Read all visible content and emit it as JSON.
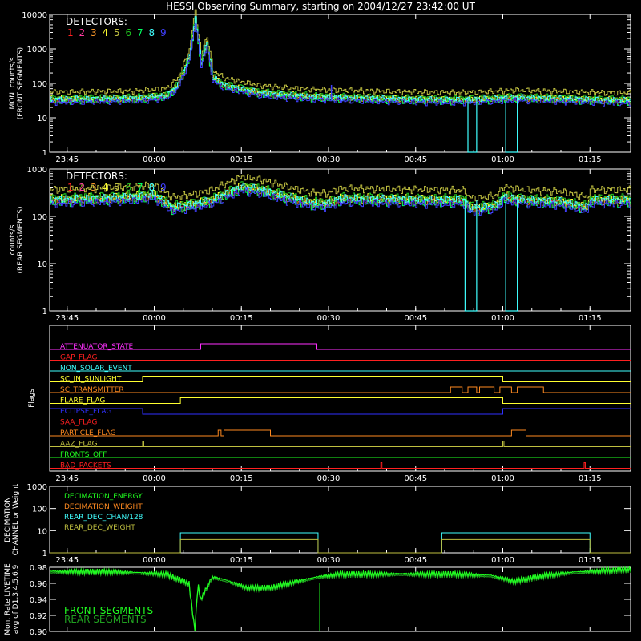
{
  "title": "HESSI Observing Summary, starting on 2004/12/27 23:42:00 UT",
  "x_ticks": [
    "23:45",
    "00:00",
    "00:15",
    "00:30",
    "00:45",
    "01:00",
    "01:15"
  ],
  "x_tick_minutes": [
    3,
    18,
    33,
    48,
    63,
    78,
    93
  ],
  "x_range_minutes": [
    0,
    100
  ],
  "colors": {
    "det1": "#ff2020",
    "det2": "#ff3aa0",
    "det3": "#ff9a2a",
    "det4": "#ffff30",
    "det5": "#bfbf40",
    "det6": "#20c020",
    "det7": "#00ff60",
    "det8": "#40ffff",
    "det9": "#4040ff"
  },
  "chart_data": [
    {
      "type": "line",
      "id": "front",
      "ylabel": [
        "MON. counts/s",
        "(FRONT SEGMENTS)"
      ],
      "yscale": "log",
      "ylim": [
        1,
        10000
      ],
      "y_ticks": [
        "1",
        "10",
        "100",
        "1000",
        "10000"
      ],
      "legend_title": "DETECTORS:",
      "legend_labels": [
        "1",
        "2",
        "3",
        "4",
        "5",
        "6",
        "7",
        "8",
        "9"
      ],
      "series_x": [
        0,
        5,
        10,
        15,
        20,
        22,
        24,
        25,
        26,
        27,
        28,
        30,
        33,
        36,
        40,
        45,
        50,
        55,
        60,
        65,
        70,
        75,
        80,
        85,
        90,
        95,
        100
      ],
      "baseline_y": [
        35,
        36,
        37,
        38,
        45,
        90,
        600,
        8000,
        400,
        1500,
        150,
        90,
        70,
        55,
        48,
        42,
        40,
        38,
        36,
        35,
        34,
        36,
        40,
        38,
        36,
        34,
        33
      ],
      "spike_minute": 48.5,
      "cyan_dropouts": [
        [
          72,
          73.5
        ],
        [
          78.5,
          80.5
        ]
      ]
    },
    {
      "type": "line",
      "id": "rear",
      "ylabel": [
        "counts/s",
        "(REAR SEGMENTS)"
      ],
      "yscale": "log",
      "ylim": [
        1,
        1000
      ],
      "y_ticks": [
        "1",
        "10",
        "100",
        "1000"
      ],
      "legend_title": "DETECTORS:",
      "legend_labels": [
        "1",
        "2",
        "3",
        "4",
        "5",
        "6",
        "7",
        "8",
        "9"
      ],
      "series_x": [
        0,
        5,
        10,
        15,
        18,
        21,
        24,
        26,
        28,
        30,
        33,
        36,
        40,
        45,
        47.5,
        50,
        55,
        60,
        65,
        71.5,
        72,
        74,
        77,
        78,
        80,
        82,
        88,
        92.5,
        93,
        100
      ],
      "baseline_y": [
        230,
        240,
        250,
        270,
        290,
        160,
        180,
        200,
        230,
        300,
        430,
        380,
        280,
        200,
        190,
        245,
        240,
        235,
        230,
        225,
        160,
        155,
        180,
        270,
        240,
        230,
        210,
        160,
        230,
        230
      ],
      "cyan_dropouts": [
        [
          71.5,
          73.5
        ],
        [
          78.5,
          80.5
        ]
      ]
    },
    {
      "type": "table",
      "id": "flags",
      "ylabel": "Flags",
      "flags": [
        {
          "name": "ATTENUATOR_STATE",
          "color": "#ff30ff",
          "segments": [
            [
              0,
              0
            ],
            [
              26,
              1
            ],
            [
              46,
              0
            ],
            [
              100,
              0
            ]
          ]
        },
        {
          "name": "GAP_FLAG",
          "color": "#ff2020",
          "segments": [
            [
              0,
              0
            ],
            [
              100,
              0
            ]
          ]
        },
        {
          "name": "NON_SOLAR_EVENT",
          "color": "#40ffff",
          "segments": [
            [
              0,
              0
            ],
            [
              100,
              0
            ]
          ]
        },
        {
          "name": "SC_IN_SUNLIGHT",
          "color": "#ffff30",
          "segments": [
            [
              0,
              0
            ],
            [
              16,
              1
            ],
            [
              78,
              0
            ],
            [
              100,
              0
            ]
          ]
        },
        {
          "name": "SC_TRANSMITTER",
          "color": "#ff8a20",
          "segments": [
            [
              0,
              0
            ],
            [
              69,
              1
            ],
            [
              71,
              0
            ],
            [
              72,
              1
            ],
            [
              73.5,
              0
            ],
            [
              74,
              1
            ],
            [
              76.5,
              0
            ],
            [
              77.5,
              1
            ],
            [
              79.5,
              0
            ],
            [
              80.5,
              1
            ],
            [
              85,
              0
            ],
            [
              100,
              0
            ]
          ]
        },
        {
          "name": "FLARE_FLAG",
          "color": "#ffff30",
          "segments": [
            [
              0,
              0
            ],
            [
              22.5,
              1
            ],
            [
              78,
              0
            ],
            [
              100,
              0
            ]
          ]
        },
        {
          "name": "ECLIPSE_FLAG",
          "color": "#3030ff",
          "segments": [
            [
              0,
              1
            ],
            [
              16,
              0
            ],
            [
              78,
              1
            ],
            [
              100,
              1
            ]
          ]
        },
        {
          "name": "SAA_FLAG",
          "color": "#ff2020",
          "segments": [
            [
              0,
              0
            ],
            [
              100,
              0
            ]
          ]
        },
        {
          "name": "PARTICLE_FLAG",
          "color": "#ff8a20",
          "segments": [
            [
              0,
              0
            ],
            [
              29,
              1
            ],
            [
              29.5,
              0
            ],
            [
              30,
              1
            ],
            [
              38,
              0
            ],
            [
              79.5,
              1
            ],
            [
              82,
              0
            ],
            [
              100,
              0
            ]
          ]
        },
        {
          "name": "AAZ_FLAG",
          "color": "#bfbf40",
          "segments": [
            [
              0,
              0
            ],
            [
              16,
              1
            ],
            [
              16.2,
              0
            ],
            [
              78,
              1
            ],
            [
              78.2,
              0
            ],
            [
              100,
              0
            ]
          ]
        },
        {
          "name": "FRONTS_OFF",
          "color": "#20ff20",
          "segments": [
            [
              0,
              0
            ],
            [
              100,
              0
            ]
          ]
        },
        {
          "name": "BAD_PACKETS",
          "color": "#ff2020",
          "segments": [
            [
              0,
              0
            ],
            [
              57,
              1
            ],
            [
              57.2,
              0
            ],
            [
              92,
              1
            ],
            [
              92.2,
              0
            ],
            [
              100,
              0
            ]
          ]
        }
      ]
    },
    {
      "type": "line",
      "id": "decimation",
      "ylabel": [
        "DECIMATION",
        "CHANNEL or Weight"
      ],
      "yscale": "log",
      "ylim": [
        1,
        1000
      ],
      "y_ticks": [
        "1",
        "10",
        "100",
        "1000"
      ],
      "legend": [
        {
          "name": "DECIMATION_ENERGY",
          "color": "#20ff20"
        },
        {
          "name": "DECIMATION_WEIGHT",
          "color": "#ff8a20"
        },
        {
          "name": "REAR_DEC_CHAN/128",
          "color": "#40ffff"
        },
        {
          "name": "REAR_DEC_WEIGHT",
          "color": "#bfbf40"
        }
      ],
      "rear_dec_chan": [
        [
          0,
          1
        ],
        [
          22.5,
          8
        ],
        [
          46.2,
          1
        ],
        [
          67.5,
          8
        ],
        [
          93,
          1
        ],
        [
          100,
          1
        ]
      ],
      "rear_dec_weight": [
        [
          0,
          1
        ],
        [
          22.5,
          4
        ],
        [
          46.2,
          1
        ],
        [
          67.5,
          4
        ],
        [
          93,
          1
        ],
        [
          100,
          1
        ]
      ]
    },
    {
      "type": "line",
      "id": "livetime",
      "ylabel": [
        "Mon. Rate LIVETIME",
        "avg of D1,3,4,5,6,9"
      ],
      "ylim": [
        0.9,
        0.98
      ],
      "y_ticks": [
        "0.90",
        "0.92",
        "0.94",
        "0.96",
        "0.98"
      ],
      "legend": [
        {
          "name": "FRONT SEGMENTS",
          "color": "#20ff20"
        },
        {
          "name": "REAR SEGMENTS",
          "color": "#20a020"
        }
      ],
      "front_x": [
        0,
        10,
        20,
        24,
        25,
        25.5,
        26,
        27,
        28,
        30,
        34,
        38,
        42,
        46,
        48,
        50,
        60,
        70,
        76,
        80,
        85,
        90,
        100
      ],
      "front_y": [
        0.975,
        0.975,
        0.972,
        0.96,
        0.9,
        0.96,
        0.94,
        0.955,
        0.968,
        0.965,
        0.955,
        0.955,
        0.962,
        0.968,
        0.97,
        0.972,
        0.972,
        0.972,
        0.97,
        0.963,
        0.97,
        0.974,
        0.978
      ],
      "spike_minute": 46.5
    }
  ]
}
